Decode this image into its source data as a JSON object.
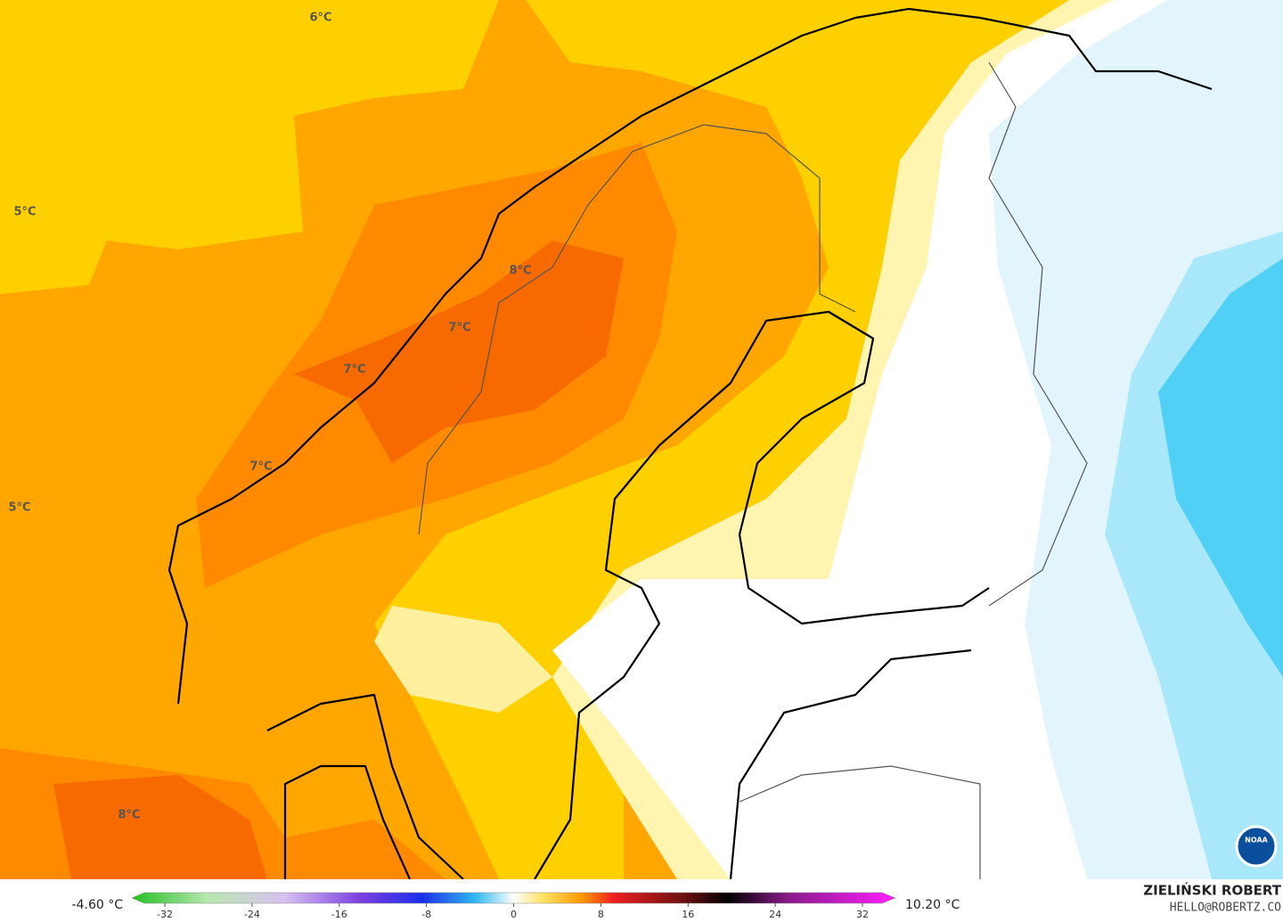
{
  "map_labels": [
    "6°C",
    "5°C",
    "5°C",
    "8°C",
    "7°C",
    "7°C",
    "7°C",
    "8°C"
  ],
  "colorbar": {
    "min_label": "-4.60 °C",
    "max_label": "10.20 °C",
    "ticks": [
      -32,
      -24,
      -16,
      -8,
      0,
      8,
      16,
      24,
      32
    ]
  },
  "credits": {
    "author": "ZIELIŃSKI ROBERT",
    "email": "HELLO@ROBERTZ.CO",
    "logo": "NOAA"
  }
}
